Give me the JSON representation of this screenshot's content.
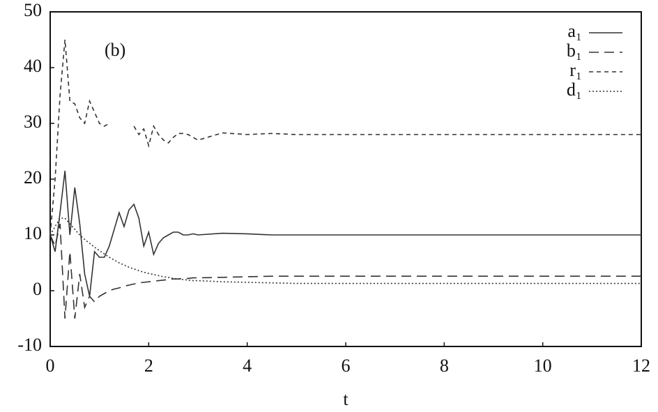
{
  "chart_data": {
    "type": "line",
    "annotation": "(b)",
    "x_label": "t",
    "x": [
      0,
      0.1,
      0.2,
      0.3,
      0.4,
      0.5,
      0.6,
      0.7,
      0.8,
      0.9,
      1,
      1.1,
      1.2,
      1.3,
      1.4,
      1.5,
      1.6,
      1.7,
      1.8,
      1.9,
      2,
      2.1,
      2.2,
      2.3,
      2.4,
      2.5,
      2.6,
      2.7,
      2.8,
      2.9,
      3,
      3.5,
      4,
      4.5,
      5,
      5.5,
      6,
      6.5,
      7,
      7.5,
      8,
      8.5,
      9,
      9.5,
      10,
      10.5,
      11,
      11.5,
      12
    ],
    "series": [
      {
        "name": "a₁",
        "color": "#333333",
        "dash": "none",
        "values": [
          10,
          7,
          14,
          21.5,
          10,
          18.5,
          12,
          3,
          -1,
          7,
          6,
          6,
          8,
          11,
          14,
          11.5,
          14.5,
          15.5,
          13,
          8,
          10.5,
          6.5,
          8.5,
          9.5,
          10,
          10.5,
          10.5,
          10,
          10,
          10.2,
          10,
          10.3,
          10.2,
          10,
          10,
          10,
          10,
          10,
          10,
          10,
          10,
          10,
          10,
          10,
          10,
          10,
          10,
          10,
          10
        ]
      },
      {
        "name": "b₁",
        "color": "#333333",
        "dash": "14 8",
        "values": [
          10,
          8,
          12,
          -5,
          7,
          -5,
          3,
          -3,
          -1,
          -2,
          -1,
          -0.5,
          0,
          0.3,
          0.5,
          0.8,
          1,
          1.2,
          1.4,
          1.5,
          1.6,
          1.7,
          1.8,
          1.9,
          2,
          2.1,
          2.1,
          2.2,
          2.2,
          2.3,
          2.3,
          2.4,
          2.5,
          2.6,
          2.6,
          2.6,
          2.6,
          2.6,
          2.6,
          2.6,
          2.6,
          2.6,
          2.6,
          2.6,
          2.6,
          2.6,
          2.6,
          2.6,
          2.6
        ]
      },
      {
        "name": "r₁",
        "color": "#333333",
        "dash": "6 5",
        "values": [
          10,
          20,
          35,
          45,
          34,
          33.5,
          31,
          30,
          34,
          32,
          30,
          29.5,
          30,
          null,
          null,
          null,
          null,
          29.5,
          28,
          29,
          26,
          29.5,
          28,
          27,
          26.5,
          27.5,
          28.2,
          28.2,
          28,
          27.5,
          27,
          28.3,
          28,
          28.2,
          28,
          28,
          28,
          28,
          28,
          28,
          28,
          28,
          28,
          28,
          28,
          28,
          28,
          28,
          28
        ]
      },
      {
        "name": "d₁",
        "color": "#333333",
        "dash": "2 3",
        "values": [
          10,
          11.5,
          13,
          13,
          12,
          11,
          10,
          9.2,
          8.5,
          7.8,
          7.2,
          6.6,
          6,
          5.5,
          5,
          4.6,
          4.2,
          3.9,
          3.6,
          3.3,
          3.1,
          2.9,
          2.7,
          2.5,
          2.4,
          2.2,
          2.1,
          2,
          1.9,
          1.8,
          1.8,
          1.6,
          1.5,
          1.4,
          1.3,
          1.3,
          1.3,
          1.3,
          1.3,
          1.3,
          1.3,
          1.3,
          1.3,
          1.3,
          1.3,
          1.3,
          1.3,
          1.3,
          1.3
        ]
      }
    ],
    "xlim": [
      0,
      12
    ],
    "xticks": [
      0,
      2,
      4,
      6,
      8,
      10,
      12
    ],
    "ylim": [
      -10,
      50
    ],
    "yticks": [
      -10,
      0,
      10,
      20,
      30,
      40,
      50
    ],
    "legend": "upper right",
    "grid": false
  }
}
